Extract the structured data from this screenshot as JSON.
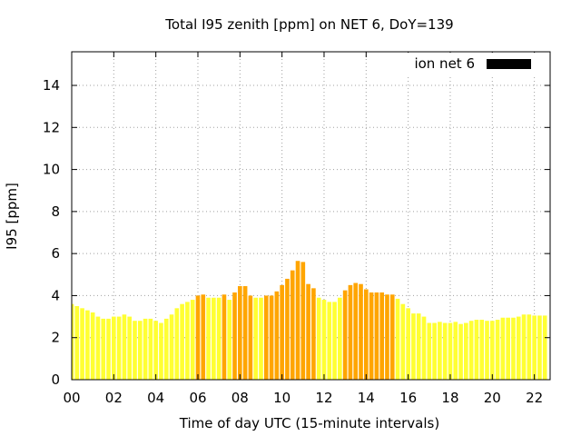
{
  "chart_data": {
    "type": "bar",
    "title": "Total I95 zenith [ppm] on NET 6, DoY=139",
    "xlabel": "Time of day UTC (15-minute intervals)",
    "ylabel": "I95 [ppm]",
    "xlim": [
      0,
      22.75
    ],
    "ylim": [
      0,
      15.6
    ],
    "x_ticks": [
      "00",
      "02",
      "04",
      "06",
      "08",
      "10",
      "12",
      "14",
      "16",
      "18",
      "20",
      "22"
    ],
    "y_ticks": [
      "0",
      "2",
      "4",
      "6",
      "8",
      "10",
      "12",
      "14"
    ],
    "grid": true,
    "legend": {
      "position": "top-right",
      "entries": [
        {
          "label": "ion net 6",
          "color": "#000000"
        }
      ]
    },
    "bar_width_hours": 0.2,
    "colors": {
      "low": "#ffff33",
      "elevated": "#ffa500",
      "legend_swatch": "#000000"
    },
    "elevated_threshold": 4.0,
    "series": [
      {
        "name": "ion net 6",
        "interval_hours": 0.25,
        "start_hour": 0,
        "values": [
          3.6,
          3.5,
          3.4,
          3.3,
          3.2,
          3.0,
          2.9,
          2.9,
          3.0,
          3.0,
          3.1,
          3.0,
          2.8,
          2.8,
          2.9,
          2.9,
          2.8,
          2.7,
          2.9,
          3.1,
          3.4,
          3.6,
          3.7,
          3.8,
          4.0,
          4.05,
          3.9,
          3.9,
          3.9,
          4.05,
          3.8,
          4.15,
          4.45,
          4.45,
          4.0,
          3.9,
          3.9,
          4.0,
          4.0,
          4.2,
          4.5,
          4.8,
          5.2,
          5.65,
          5.6,
          4.55,
          4.35,
          3.9,
          3.8,
          3.7,
          3.7,
          3.9,
          4.25,
          4.5,
          4.6,
          4.55,
          4.3,
          4.15,
          4.15,
          4.15,
          4.05,
          4.05,
          3.85,
          3.6,
          3.4,
          3.15,
          3.15,
          3.0,
          2.7,
          2.7,
          2.75,
          2.7,
          2.7,
          2.75,
          2.65,
          2.7,
          2.8,
          2.85,
          2.85,
          2.8,
          2.8,
          2.85,
          2.95,
          2.95,
          2.95,
          3.0,
          3.1,
          3.1,
          3.05,
          3.05,
          3.05
        ]
      }
    ]
  }
}
